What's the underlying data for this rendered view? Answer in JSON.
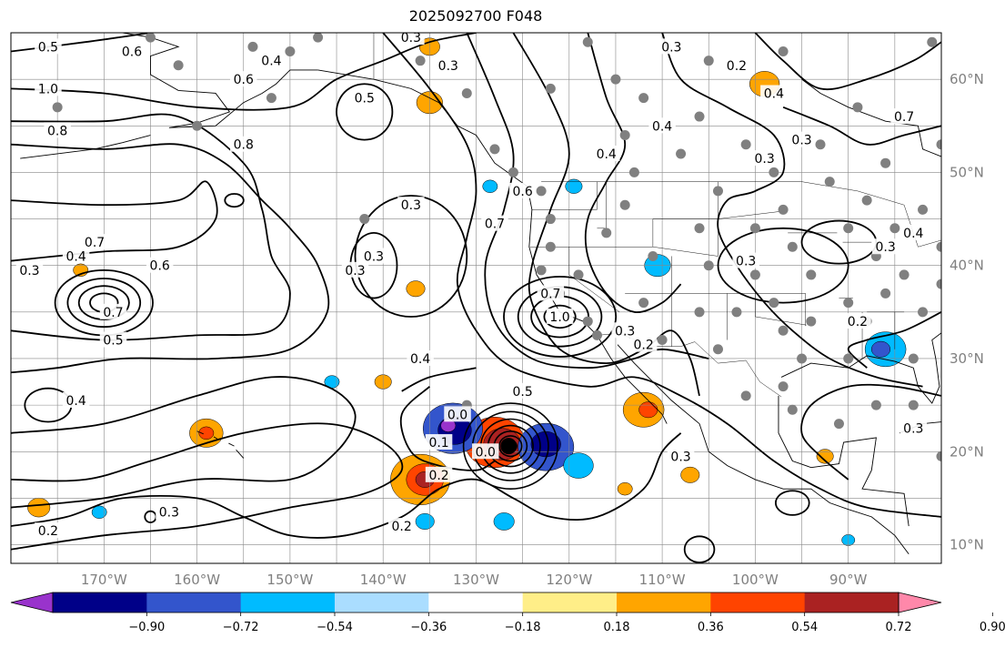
{
  "title": "2025092700 F048",
  "map": {
    "lon_range": [
      -180,
      -80
    ],
    "lat_range": [
      8,
      65
    ],
    "lon_ticks": [
      {
        "value": -170,
        "label": "170°W"
      },
      {
        "value": -160,
        "label": "160°W"
      },
      {
        "value": -150,
        "label": "150°W"
      },
      {
        "value": -140,
        "label": "140°W"
      },
      {
        "value": -130,
        "label": "130°W"
      },
      {
        "value": -120,
        "label": "120°W"
      },
      {
        "value": -110,
        "label": "110°W"
      },
      {
        "value": -100,
        "label": "100°W"
      },
      {
        "value": -90,
        "label": "90°W"
      }
    ],
    "lat_ticks": [
      {
        "value": 60,
        "label": "60°N"
      },
      {
        "value": 50,
        "label": "50°N"
      },
      {
        "value": 40,
        "label": "40°N"
      },
      {
        "value": 30,
        "label": "30°N"
      },
      {
        "value": 20,
        "label": "20°N"
      },
      {
        "value": 10,
        "label": "10°N"
      }
    ],
    "contour_labels": [
      {
        "text": "0.5",
        "lon": -176,
        "lat": 63.5
      },
      {
        "text": "0.6",
        "lon": -167,
        "lat": 63
      },
      {
        "text": "1.0",
        "lon": -176,
        "lat": 59
      },
      {
        "text": "0.8",
        "lon": -175,
        "lat": 54.5
      },
      {
        "text": "0.7",
        "lon": -171,
        "lat": 42.5
      },
      {
        "text": "0.3",
        "lon": -178,
        "lat": 39.5
      },
      {
        "text": "0.4",
        "lon": -173,
        "lat": 41
      },
      {
        "text": "0.6",
        "lon": -164,
        "lat": 40
      },
      {
        "text": "0.7",
        "lon": -169,
        "lat": 35
      },
      {
        "text": "0.5",
        "lon": -169,
        "lat": 32
      },
      {
        "text": "0.4",
        "lon": -173,
        "lat": 25.5
      },
      {
        "text": "0.6",
        "lon": -155,
        "lat": 60
      },
      {
        "text": "0.4",
        "lon": -152,
        "lat": 62
      },
      {
        "text": "0.8",
        "lon": -155,
        "lat": 53
      },
      {
        "text": "0.5",
        "lon": -142,
        "lat": 58
      },
      {
        "text": "0.3",
        "lon": -137,
        "lat": 64.5
      },
      {
        "text": "0.3",
        "lon": -133,
        "lat": 61.5
      },
      {
        "text": "0.3",
        "lon": -137,
        "lat": 46.5
      },
      {
        "text": "0.3",
        "lon": -141,
        "lat": 41
      },
      {
        "text": "0.3",
        "lon": -143,
        "lat": 39.5
      },
      {
        "text": "0.4",
        "lon": -136,
        "lat": 30
      },
      {
        "text": "0.6",
        "lon": -125,
        "lat": 48
      },
      {
        "text": "0.7",
        "lon": -128,
        "lat": 44.5
      },
      {
        "text": "0.4",
        "lon": -116,
        "lat": 52
      },
      {
        "text": "0.3",
        "lon": -109,
        "lat": 63.5
      },
      {
        "text": "0.4",
        "lon": -110,
        "lat": 55
      },
      {
        "text": "0.2",
        "lon": -102,
        "lat": 61.5
      },
      {
        "text": "0.4",
        "lon": -98,
        "lat": 58.5
      },
      {
        "text": "0.3",
        "lon": -95,
        "lat": 53.5
      },
      {
        "text": "0.3",
        "lon": -99,
        "lat": 51.5
      },
      {
        "text": "0.7",
        "lon": -84,
        "lat": 56
      },
      {
        "text": "0.3",
        "lon": -101,
        "lat": 40.5
      },
      {
        "text": "0.3",
        "lon": -86,
        "lat": 42
      },
      {
        "text": "0.4",
        "lon": -83,
        "lat": 43.5
      },
      {
        "text": "1.0",
        "lon": -121,
        "lat": 34.5
      },
      {
        "text": "0.5",
        "lon": -125,
        "lat": 26.5
      },
      {
        "text": "0.3",
        "lon": -114,
        "lat": 33
      },
      {
        "text": "0.2",
        "lon": -112,
        "lat": 31.5
      },
      {
        "text": "0.7",
        "lon": -122,
        "lat": 37
      },
      {
        "text": "0.2",
        "lon": -89,
        "lat": 34
      },
      {
        "text": "0.3",
        "lon": -108,
        "lat": 19.5
      },
      {
        "text": "0.3",
        "lon": -83,
        "lat": 22.5
      },
      {
        "text": "0.3",
        "lon": -163,
        "lat": 13.5
      },
      {
        "text": "0.2",
        "lon": -176,
        "lat": 11.5
      },
      {
        "text": "0.2",
        "lon": -138,
        "lat": 12
      },
      {
        "text": "0.0",
        "lon": -132,
        "lat": 24
      },
      {
        "text": "0.0",
        "lon": -129,
        "lat": 20
      },
      {
        "text": "0.1",
        "lon": -134,
        "lat": 21
      },
      {
        "text": "0.2",
        "lon": -134,
        "lat": 17.5
      }
    ],
    "storm_center": {
      "lon": -126.5,
      "lat": 20.6
    }
  },
  "colorbar": {
    "ticks": [
      "−0.90",
      "−0.72",
      "−0.54",
      "−0.36",
      "−0.18",
      "0.18",
      "0.36",
      "0.54",
      "0.72",
      "0.90"
    ],
    "colors": [
      "#9933cc",
      "#000088",
      "#3355cc",
      "#00bbff",
      "#aaddff",
      "#ffffff",
      "#ffee88",
      "#ffa500",
      "#ff4400",
      "#aa2222",
      "#ff88aa"
    ]
  },
  "shading": [
    {
      "lon": -128,
      "lat": 21,
      "r": 3.2,
      "color": "#ff4400"
    },
    {
      "lon": -127.2,
      "lat": 20.8,
      "r": 2.0,
      "color": "#aa2222"
    },
    {
      "lon": -122.5,
      "lat": 20.5,
      "r": 3.0,
      "color": "#3355cc"
    },
    {
      "lon": -122.5,
      "lat": 20.8,
      "r": 1.6,
      "color": "#000088"
    },
    {
      "lon": -132.5,
      "lat": 22.5,
      "r": 3.2,
      "color": "#3355cc"
    },
    {
      "lon": -132.3,
      "lat": 22.3,
      "r": 1.8,
      "color": "#000088"
    },
    {
      "lon": -133,
      "lat": 22.8,
      "r": 0.8,
      "color": "#9933cc"
    },
    {
      "lon": -136,
      "lat": 17,
      "r": 3.2,
      "color": "#ffa500"
    },
    {
      "lon": -135.5,
      "lat": 17,
      "r": 2.0,
      "color": "#ff4400"
    },
    {
      "lon": -135.5,
      "lat": 17,
      "r": 1.0,
      "color": "#aa2222"
    },
    {
      "lon": -119,
      "lat": 18.5,
      "r": 1.6,
      "color": "#00bbff"
    },
    {
      "lon": -112,
      "lat": 24.5,
      "r": 2.2,
      "color": "#ffa500"
    },
    {
      "lon": -111.5,
      "lat": 24.5,
      "r": 1.0,
      "color": "#ff4400"
    },
    {
      "lon": -159,
      "lat": 22,
      "r": 1.8,
      "color": "#ffa500"
    },
    {
      "lon": -159,
      "lat": 22,
      "r": 0.8,
      "color": "#ff4400"
    },
    {
      "lon": -86,
      "lat": 31,
      "r": 2.2,
      "color": "#00bbff"
    },
    {
      "lon": -86.5,
      "lat": 31,
      "r": 1.0,
      "color": "#3355cc"
    },
    {
      "lon": -99,
      "lat": 59.5,
      "r": 1.6,
      "color": "#ffa500"
    },
    {
      "lon": -135,
      "lat": 57.5,
      "r": 1.4,
      "color": "#ffa500"
    },
    {
      "lon": -135,
      "lat": 63.5,
      "r": 1.1,
      "color": "#ffa500"
    },
    {
      "lon": -110.5,
      "lat": 40,
      "r": 1.4,
      "color": "#00bbff"
    },
    {
      "lon": -119.5,
      "lat": 48.5,
      "r": 0.9,
      "color": "#00bbff"
    },
    {
      "lon": -128.5,
      "lat": 48.5,
      "r": 0.8,
      "color": "#00bbff"
    },
    {
      "lon": -136.5,
      "lat": 37.5,
      "r": 1.0,
      "color": "#ffa500"
    },
    {
      "lon": -140,
      "lat": 27.5,
      "r": 0.9,
      "color": "#ffa500"
    },
    {
      "lon": -107,
      "lat": 17.5,
      "r": 1.0,
      "color": "#ffa500"
    },
    {
      "lon": -114,
      "lat": 16,
      "r": 0.8,
      "color": "#ffa500"
    },
    {
      "lon": -177,
      "lat": 14,
      "r": 1.2,
      "color": "#ffa500"
    },
    {
      "lon": -170.5,
      "lat": 13.5,
      "r": 0.8,
      "color": "#00bbff"
    },
    {
      "lon": -135.5,
      "lat": 12.5,
      "r": 1.0,
      "color": "#00bbff"
    },
    {
      "lon": -127,
      "lat": 12.5,
      "r": 1.1,
      "color": "#00bbff"
    },
    {
      "lon": -145.5,
      "lat": 27.5,
      "r": 0.8,
      "color": "#00bbff"
    },
    {
      "lon": -92.5,
      "lat": 19.5,
      "r": 0.9,
      "color": "#ffa500"
    },
    {
      "lon": -172.5,
      "lat": 39.5,
      "r": 0.8,
      "color": "#ffa500"
    },
    {
      "lon": -90,
      "lat": 10.5,
      "r": 0.7,
      "color": "#00bbff"
    }
  ],
  "stations": [
    [
      -175,
      57
    ],
    [
      -165,
      64.5
    ],
    [
      -162,
      61.5
    ],
    [
      -160,
      55
    ],
    [
      -154,
      63.5
    ],
    [
      -150,
      63
    ],
    [
      -147,
      64.5
    ],
    [
      -152,
      58
    ],
    [
      -136,
      62
    ],
    [
      -131,
      58.5
    ],
    [
      -128,
      52.5
    ],
    [
      -126,
      50
    ],
    [
      -123,
      48
    ],
    [
      -122,
      45
    ],
    [
      -122,
      42
    ],
    [
      -123,
      39.5
    ],
    [
      -121,
      37
    ],
    [
      -118,
      34
    ],
    [
      -117,
      32.5
    ],
    [
      -119,
      39
    ],
    [
      -116,
      43.5
    ],
    [
      -114,
      46.5
    ],
    [
      -111,
      41
    ],
    [
      -112,
      36
    ],
    [
      -110,
      32
    ],
    [
      -106,
      35
    ],
    [
      -105,
      40
    ],
    [
      -106,
      44
    ],
    [
      -104,
      48
    ],
    [
      -108,
      52
    ],
    [
      -106,
      56
    ],
    [
      -112,
      58
    ],
    [
      -115,
      60
    ],
    [
      -122,
      59
    ],
    [
      -118,
      64
    ],
    [
      -114,
      54
    ],
    [
      -113,
      50
    ],
    [
      -101,
      53
    ],
    [
      -98,
      50
    ],
    [
      -97,
      46
    ],
    [
      -96,
      42
    ],
    [
      -94,
      39
    ],
    [
      -98,
      36
    ],
    [
      -97,
      33
    ],
    [
      -95,
      30
    ],
    [
      -97,
      27
    ],
    [
      -94,
      34
    ],
    [
      -90,
      30
    ],
    [
      -88,
      34
    ],
    [
      -86,
      37
    ],
    [
      -84,
      39
    ],
    [
      -87,
      41
    ],
    [
      -90,
      44
    ],
    [
      -88,
      47
    ],
    [
      -92,
      49
    ],
    [
      -86,
      51
    ],
    [
      -80,
      42
    ],
    [
      -82,
      46
    ],
    [
      -100,
      44
    ],
    [
      -102,
      35
    ],
    [
      -100,
      39
    ],
    [
      -104,
      31
    ],
    [
      -101,
      26
    ],
    [
      -91,
      23
    ],
    [
      -87,
      25
    ],
    [
      -83,
      25
    ],
    [
      -85,
      44
    ],
    [
      -83,
      30
    ],
    [
      -82,
      35
    ],
    [
      -80,
      38
    ],
    [
      -93,
      53
    ],
    [
      -89,
      57
    ],
    [
      -97,
      63
    ],
    [
      -105,
      62
    ],
    [
      -81,
      64
    ],
    [
      -80,
      53
    ],
    [
      -80,
      19.5
    ],
    [
      -90,
      36
    ],
    [
      -96,
      24.5
    ],
    [
      -131,
      25
    ],
    [
      -142,
      45
    ]
  ],
  "color_meaning_note_hidden": ""
}
